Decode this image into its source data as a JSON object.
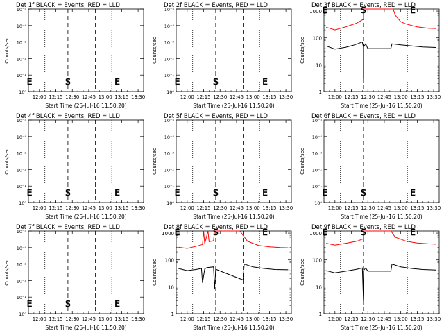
{
  "chart_data": [
    {
      "type": "line",
      "title": "Det 1f BLACK = Events, RED = LLD",
      "xlabel": "Start Time (25-Jul-16 11:50:20)",
      "ylabel": "Counts/sec",
      "x_ticks": [
        "12:00",
        "12:15",
        "12:30",
        "12:45",
        "13:00",
        "13:15",
        "13:30"
      ],
      "y_ticks": [
        "10⁰",
        "10⁻¹",
        "10⁻²",
        "10⁻³",
        "10⁻⁴",
        "10⁻⁵"
      ],
      "xlim": [
        "11:50",
        "13:35"
      ],
      "markers": [
        {
          "time": "11:51",
          "label": "E"
        },
        {
          "time": "12:26",
          "label": "S"
        },
        {
          "time": "13:11",
          "label": "E"
        }
      ],
      "dashed_lines": [
        "12:26",
        "12:51"
      ],
      "dotted_lines": [
        "12:05",
        "13:06"
      ],
      "series": []
    },
    {
      "type": "line",
      "title": "Det 2f BLACK = Events, RED = LLD",
      "xlabel": "Start Time (25-Jul-16 11:50:20)",
      "ylabel": "Counts/sec",
      "x_ticks": [
        "12:00",
        "12:15",
        "12:30",
        "12:45",
        "13:00",
        "13:15",
        "13:30"
      ],
      "y_ticks": [
        "10⁰",
        "10⁻¹",
        "10⁻²",
        "10⁻³",
        "10⁻⁴",
        "10⁻⁵"
      ],
      "xlim": [
        "11:50",
        "13:35"
      ],
      "markers": [
        {
          "time": "11:51",
          "label": "E"
        },
        {
          "time": "12:26",
          "label": "S"
        },
        {
          "time": "13:11",
          "label": "E"
        }
      ],
      "dashed_lines": [
        "12:26",
        "12:51"
      ],
      "dotted_lines": [
        "12:05",
        "13:06"
      ],
      "series": []
    },
    {
      "type": "line",
      "title": "Det 3f BLACK = Events, RED = LLD",
      "xlabel": "Start Time (25-Jul-16 11:50:20)",
      "ylabel": "Counts/sec",
      "x_ticks": [
        "12:00",
        "12:15",
        "12:30",
        "12:45",
        "13:00",
        "13:15",
        "13:30"
      ],
      "y_ticks": [
        "1000",
        "100",
        "10",
        "1"
      ],
      "ylim": [
        1,
        1200
      ],
      "y_scale": "log",
      "xlim": [
        "11:50",
        "13:35"
      ],
      "markers": [
        {
          "time": "11:51",
          "label": "E"
        },
        {
          "time": "12:26",
          "label": "S"
        },
        {
          "time": "13:11",
          "label": "E"
        }
      ],
      "dashed_lines": [
        "12:26",
        "12:51"
      ],
      "dotted_lines": [
        "12:05",
        "13:06"
      ],
      "series": [
        {
          "color": "#ff0000",
          "data": [
            [
              "11:52",
              250
            ],
            [
              "12:00",
              200
            ],
            [
              "12:10",
              260
            ],
            [
              "12:20",
              360
            ],
            [
              "12:26",
              500
            ],
            [
              "12:26",
              1200
            ],
            [
              "12:28",
              1200
            ],
            [
              "12:53",
              1200
            ],
            [
              "12:55",
              700
            ],
            [
              "13:00",
              400
            ],
            [
              "13:05",
              330
            ],
            [
              "13:15",
              260
            ],
            [
              "13:25",
              230
            ],
            [
              "13:32",
              225
            ]
          ]
        },
        {
          "color": "#000000",
          "data": [
            [
              "11:52",
              50
            ],
            [
              "12:00",
              38
            ],
            [
              "12:10",
              45
            ],
            [
              "12:18",
              55
            ],
            [
              "12:25",
              70
            ],
            [
              "12:26",
              45
            ],
            [
              "12:26",
              3
            ],
            [
              "12:26",
              45
            ],
            [
              "12:28",
              60
            ],
            [
              "12:30",
              40
            ],
            [
              "12:51",
              40
            ],
            [
              "12:52",
              60
            ],
            [
              "13:00",
              55
            ],
            [
              "13:10",
              50
            ],
            [
              "13:20",
              46
            ],
            [
              "13:32",
              44
            ]
          ]
        }
      ]
    },
    {
      "type": "line",
      "title": "Det 4f BLACK = Events, RED = LLD",
      "xlabel": "Start Time (25-Jul-16 11:50:20)",
      "ylabel": "Counts/sec",
      "x_ticks": [
        "12:00",
        "12:15",
        "12:30",
        "12:45",
        "13:00",
        "13:15",
        "13:30"
      ],
      "y_ticks": [
        "10⁰",
        "10⁻¹",
        "10⁻²",
        "10⁻³",
        "10⁻⁴",
        "10⁻⁵"
      ],
      "xlim": [
        "11:50",
        "13:35"
      ],
      "markers": [
        {
          "time": "11:51",
          "label": "E"
        },
        {
          "time": "12:26",
          "label": "S"
        },
        {
          "time": "13:11",
          "label": "E"
        }
      ],
      "dashed_lines": [
        "12:26",
        "12:51"
      ],
      "dotted_lines": [
        "12:05",
        "13:06"
      ],
      "series": []
    },
    {
      "type": "line",
      "title": "Det 5f BLACK = Events, RED = LLD",
      "xlabel": "Start Time (25-Jul-16 11:50:20)",
      "ylabel": "Counts/sec",
      "x_ticks": [
        "12:00",
        "12:15",
        "12:30",
        "12:45",
        "13:00",
        "13:15",
        "13:30"
      ],
      "y_ticks": [
        "10⁰",
        "10⁻¹",
        "10⁻²",
        "10⁻³",
        "10⁻⁴",
        "10⁻⁵"
      ],
      "xlim": [
        "11:50",
        "13:35"
      ],
      "markers": [
        {
          "time": "11:51",
          "label": "E"
        },
        {
          "time": "12:26",
          "label": "S"
        },
        {
          "time": "13:11",
          "label": "E"
        }
      ],
      "dashed_lines": [
        "12:26",
        "12:51"
      ],
      "dotted_lines": [
        "12:05",
        "13:06"
      ],
      "series": []
    },
    {
      "type": "line",
      "title": "Det 6f BLACK = Events, RED = LLD",
      "xlabel": "Start Time (25-Jul-16 11:50:20)",
      "ylabel": "Counts/sec",
      "x_ticks": [
        "12:00",
        "12:15",
        "12:30",
        "12:45",
        "13:00",
        "13:15",
        "13:30"
      ],
      "y_ticks": [
        "10⁰",
        "10⁻¹",
        "10⁻²",
        "10⁻³",
        "10⁻⁴",
        "10⁻⁵"
      ],
      "xlim": [
        "11:50",
        "13:35"
      ],
      "markers": [
        {
          "time": "11:51",
          "label": "E"
        },
        {
          "time": "12:26",
          "label": "S"
        },
        {
          "time": "13:11",
          "label": "E"
        }
      ],
      "dashed_lines": [
        "12:26",
        "12:51"
      ],
      "dotted_lines": [
        "12:05",
        "13:06"
      ],
      "series": []
    },
    {
      "type": "line",
      "title": "Det 7f BLACK = Events, RED = LLD",
      "xlabel": "Start Time (25-Jul-16 11:50:20)",
      "ylabel": "Counts/sec",
      "x_ticks": [
        "12:00",
        "12:15",
        "12:30",
        "12:45",
        "13:00",
        "13:15",
        "13:30"
      ],
      "y_ticks": [
        "10⁰",
        "10⁻¹",
        "10⁻²",
        "10⁻³",
        "10⁻⁴",
        "10⁻⁵"
      ],
      "xlim": [
        "11:50",
        "13:35"
      ],
      "markers": [
        {
          "time": "11:51",
          "label": "E"
        },
        {
          "time": "12:26",
          "label": "S"
        },
        {
          "time": "13:11",
          "label": "E"
        }
      ],
      "dashed_lines": [
        "12:26",
        "12:51"
      ],
      "dotted_lines": [
        "12:05",
        "13:06"
      ],
      "series": []
    },
    {
      "type": "line",
      "title": "Det 8f BLACK = Events, RED = LLD",
      "xlabel": "Start Time (25-Jul-16 11:50:20)",
      "ylabel": "Counts/sec",
      "x_ticks": [
        "12:00",
        "12:15",
        "12:30",
        "12:45",
        "13:00",
        "13:15",
        "13:30"
      ],
      "y_ticks": [
        "1000",
        "100",
        "10",
        "1"
      ],
      "ylim": [
        1,
        1200
      ],
      "y_scale": "log",
      "xlim": [
        "11:50",
        "13:35"
      ],
      "markers": [
        {
          "time": "11:51",
          "label": "E"
        },
        {
          "time": "12:26",
          "label": "S"
        },
        {
          "time": "13:11",
          "label": "E"
        }
      ],
      "dashed_lines": [
        "12:26",
        "12:51"
      ],
      "dotted_lines": [
        "12:05",
        "13:06"
      ],
      "series": [
        {
          "color": "#ff0000",
          "data": [
            [
              "11:52",
              300
            ],
            [
              "12:00",
              270
            ],
            [
              "12:10",
              340
            ],
            [
              "12:14",
              380
            ],
            [
              "12:15",
              1200
            ],
            [
              "12:16",
              400
            ],
            [
              "12:19",
              1200
            ],
            [
              "12:20",
              480
            ],
            [
              "12:24",
              520
            ],
            [
              "12:25",
              1200
            ],
            [
              "12:26",
              1200
            ],
            [
              "12:48",
              1200
            ],
            [
              "12:55",
              500
            ],
            [
              "13:05",
              350
            ],
            [
              "13:15",
              310
            ],
            [
              "13:25",
              290
            ],
            [
              "13:32",
              285
            ]
          ]
        },
        {
          "color": "#000000",
          "data": [
            [
              "11:52",
              48
            ],
            [
              "12:00",
              40
            ],
            [
              "12:08",
              44
            ],
            [
              "12:13",
              48
            ],
            [
              "12:14",
              14
            ],
            [
              "12:16",
              46
            ],
            [
              "12:18",
              52
            ],
            [
              "12:24",
              55
            ],
            [
              "12:25",
              8
            ],
            [
              "12:26",
              45
            ],
            [
              "12:51",
              18
            ],
            [
              "12:52",
              70
            ],
            [
              "13:00",
              55
            ],
            [
              "13:10",
              48
            ],
            [
              "13:20",
              44
            ],
            [
              "13:32",
              43
            ]
          ]
        }
      ]
    },
    {
      "type": "line",
      "title": "Det 9f BLACK = Events, RED = LLD",
      "xlabel": "Start Time (25-Jul-16 11:50:20)",
      "ylabel": "Counts/sec",
      "x_ticks": [
        "12:00",
        "12:15",
        "12:30",
        "12:45",
        "13:00",
        "13:15",
        "13:30"
      ],
      "y_ticks": [
        "1000",
        "100",
        "10",
        "1"
      ],
      "ylim": [
        1,
        1200
      ],
      "y_scale": "log",
      "xlim": [
        "11:50",
        "13:35"
      ],
      "markers": [
        {
          "time": "11:51",
          "label": "E"
        },
        {
          "time": "12:26",
          "label": "S"
        },
        {
          "time": "13:11",
          "label": "E"
        }
      ],
      "dashed_lines": [
        "12:26",
        "12:51"
      ],
      "dotted_lines": [
        "12:05",
        "13:06"
      ],
      "series": [
        {
          "color": "#ff0000",
          "data": [
            [
              "11:52",
              420
            ],
            [
              "12:00",
              360
            ],
            [
              "12:10",
              420
            ],
            [
              "12:20",
              500
            ],
            [
              "12:26",
              620
            ],
            [
              "12:26",
              1200
            ],
            [
              "12:28",
              1200
            ],
            [
              "12:51",
              1200
            ],
            [
              "12:55",
              700
            ],
            [
              "13:05",
              500
            ],
            [
              "13:15",
              430
            ],
            [
              "13:25",
              400
            ],
            [
              "13:32",
              390
            ]
          ]
        },
        {
          "color": "#000000",
          "data": [
            [
              "11:52",
              40
            ],
            [
              "12:00",
              33
            ],
            [
              "12:10",
              38
            ],
            [
              "12:20",
              45
            ],
            [
              "12:25",
              50
            ],
            [
              "12:26",
              3
            ],
            [
              "12:26",
              40
            ],
            [
              "12:28",
              50
            ],
            [
              "12:30",
              38
            ],
            [
              "12:51",
              38
            ],
            [
              "12:52",
              70
            ],
            [
              "13:00",
              55
            ],
            [
              "13:10",
              48
            ],
            [
              "13:20",
              44
            ],
            [
              "13:32",
              42
            ]
          ]
        }
      ]
    }
  ]
}
